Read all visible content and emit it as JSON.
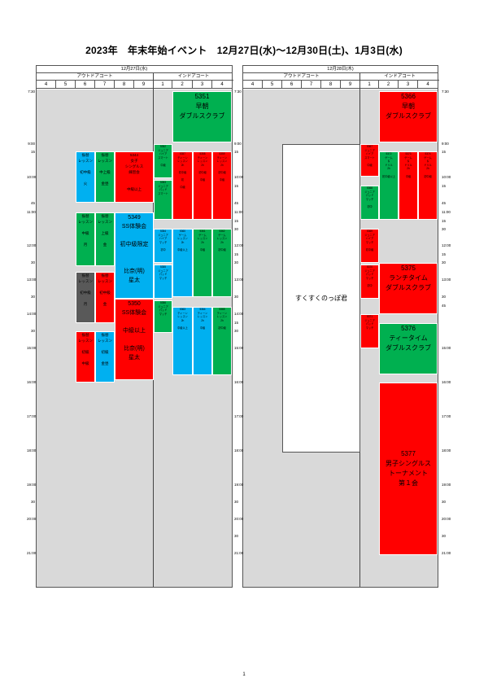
{
  "title": "2023年　年末年始イベント　12月27日(水)～12月30日(土)、1月3日(水)",
  "panels": [
    {
      "date": "12月27日(水)",
      "outdoor": "アウトドアコート",
      "indoor": "インドアコート"
    },
    {
      "date": "12月28日(木)",
      "outdoor": "アウトドアコート",
      "indoor": "インドアコート"
    }
  ],
  "court_numbers": [
    "4",
    "5",
    "6",
    "7",
    "8",
    "9",
    "1",
    "2",
    "3",
    "4"
  ],
  "times_left": [
    "7:30",
    "9:00",
    "15",
    "10:00",
    "45",
    "11:00",
    "12:00",
    "30",
    "13:00",
    "30",
    "14:00",
    "30",
    "15:00",
    "16:00",
    "17:00",
    "18:00",
    "19:00",
    "30",
    "20:00",
    "21:00"
  ],
  "times_right": [
    "7:30",
    "9:00",
    "15",
    "10:00",
    "15",
    "45",
    "11:00",
    "15",
    "30",
    "12:00",
    "15",
    "30",
    "13:00",
    "30",
    "14:00",
    "15",
    "30",
    "15:00",
    "16:00",
    "17:00",
    "18:00",
    "19:00",
    "30",
    "20:00",
    "30",
    "21:00"
  ],
  "times_right2": [
    "7:30",
    "9:00",
    "15",
    "10:00",
    "15",
    "45",
    "11:00",
    "15",
    "30",
    "12:00",
    "15",
    "30",
    "13:00",
    "30",
    "45",
    "15:00",
    "16:00",
    "17:00",
    "18:00",
    "19:00",
    "30",
    "20:00",
    "30",
    "21:00"
  ],
  "blocks": {
    "b5351": "5351\n早朝\nダブルスクラブ",
    "b1a": "振替\nレッスン\n\n初中級\n\n火",
    "b1b": "振替\nレッスン\n\n中上級\n\n金昼",
    "b5344": "5344\n女子\nシングルス\n練習会\n\n\n中級以上",
    "b5352": "5352\nジュニア\nハイア\nスマート\n\n中級",
    "b5357": "5357\nティーン\nレッスン\n2h\n\n初中級\n\n初\n\n中級",
    "b5358": "5358\nティーン\nレッスン\n2h\n\n初中級\n\n中級",
    "b5359": "5359\nティーン\nレッスン\n2h\n\n初中級\n\n中級",
    "b5353": "5353\nジュニア\nパッド\nスマート",
    "b2a": "振替\nレッスン\n\n中級\n\n月",
    "b2b": "振替\nレッスン\n\n上級\n\n金",
    "b5349": "5349\nSS体験会\n\n初中級限定\n\n\n比奈(明)\n星太",
    "b5354": "5354\nジュニア\nハイア\nマッチ\n\n初中",
    "b5360": "5360\nゲーム\nレッスン\n2h\n\n中級以上",
    "b5361": "5361\nゲーム\nレッスン\n2h\n\n中級",
    "b5362": "5362\nゲーム\nレッスン\n2h\n\n初中級",
    "b3a": "振替\nレッスン\n\n初中級\n\n月",
    "b3b": "振替\nレッスン\n\n初中級\n\n金",
    "b5355": "5355\nジュニア\nパッド\nマッチ",
    "b5350": "5350\nSS体験会\n\n中級以上\n\n比奈(明)\n星太",
    "b5356": "5356\nジュニア\nパッド\nマッチ",
    "b5363": "5363\nティーン\nレッスン\n2h\n\n中級以上",
    "b5364": "5364\nティーン\nレッスン\n2h\n\n中級",
    "b5365": "5365\nティーン\nレッスン\n2h\n\n初中級",
    "b4a": "振替\nレッスン\n\n初級\n\n中級",
    "b4b": "振替\nレッスン\n\n初級\n\n金昼",
    "b5366": "5366\n早朝\nダブルスクラブ",
    "b5367": "5367\nジュニア\nハイア\nスマート\n\n中級",
    "b5372": "5372\nゲーム\n＆\nドリル\n2h\n\n初中級以上",
    "b5373": "5373\nゲーム\n＆\nドリル\n2h\n\n中級",
    "b5374": "5374\nゲーム\n＆\nドリル\n2h\n\n初中級",
    "b5368": "5368\nジュニア\nパッド\nマッチ\n\n初中",
    "b5369": "5369\nジュニア\nハイア\nマッチ\n\n初中級",
    "b5370": "5370\nジュニア\nパッド\nマッチ\n\n初中",
    "b5371": "5371\nジュニア\nパッド\nマッチ",
    "b5375": "5375\nランチタイム\nダブルスクラブ",
    "b5376": "5376\nティータイム\nダブルスクラブ",
    "b5377": "5377\n男子シングルス\nトーナメント\n第１会",
    "sukusuku": "すくすくのっぽ君"
  },
  "colors": {
    "red": "#ff0000",
    "green": "#00b050",
    "blue": "#00b0f0",
    "dark": "#595959",
    "grey": "#d9d9d9"
  },
  "page_number": "1"
}
